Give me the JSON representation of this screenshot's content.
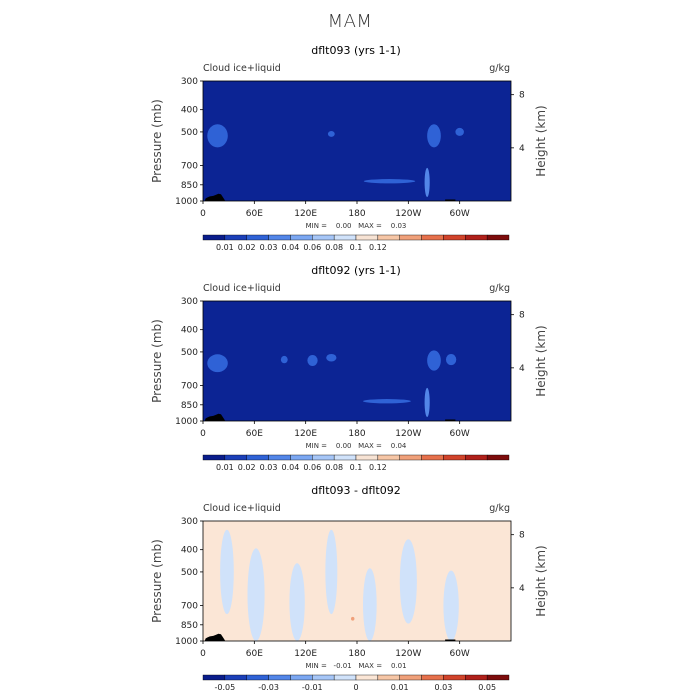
{
  "page": {
    "title": "MAM"
  },
  "chart_data": [
    {
      "type": "heatmap",
      "title": "dflt093 (yrs 1-1)",
      "left_label": "Cloud ice+liquid",
      "units": "g/kg",
      "ylabel": "Pressure (mb)",
      "y2label": "Height (km)",
      "x_ticks": [
        "0",
        "60E",
        "120E",
        "180",
        "120W",
        "60W"
      ],
      "y_ticks": [
        "300",
        "400",
        "500",
        "700",
        "850",
        "1000"
      ],
      "y_tick_values": [
        300,
        400,
        500,
        700,
        850,
        1000
      ],
      "y2_ticks": [
        "8",
        "4"
      ],
      "stats": "MIN =    0.00   MAX =    0.03",
      "colorbar_labels": [
        "0.01",
        "0.02",
        "0.03",
        "0.04",
        "0.06",
        "0.08",
        "0.1",
        "0.12"
      ],
      "colorbar_colors": [
        "#0a1d8c",
        "#1b3fb8",
        "#2f62d6",
        "#5286e8",
        "#7ba7f2",
        "#a6c6f7",
        "#d0e2fa",
        "#f7e3d4",
        "#f6c6a6",
        "#f0a07a",
        "#e6704b",
        "#d1432a",
        "#b0201a",
        "#7d0c0c"
      ],
      "field_color": "#0c2494",
      "features": [
        {
          "x": 17,
          "p": 520,
          "rx": 12,
          "rp": 60,
          "level": 2
        },
        {
          "x": 150,
          "p": 510,
          "rx": 4,
          "rp": 15,
          "level": 2
        },
        {
          "x": 218,
          "p": 820,
          "rx": 30,
          "rp": 18,
          "level": 2
        },
        {
          "x": 270,
          "p": 520,
          "rx": 8,
          "rp": 60,
          "level": 2
        },
        {
          "x": 300,
          "p": 500,
          "rx": 5,
          "rp": 20,
          "level": 2
        },
        {
          "x": 262,
          "p": 830,
          "rx": 3,
          "rp": 120,
          "level": 3
        }
      ]
    },
    {
      "type": "heatmap",
      "title": "dflt092 (yrs 1-1)",
      "left_label": "Cloud ice+liquid",
      "units": "g/kg",
      "ylabel": "Pressure (mb)",
      "y2label": "Height (km)",
      "x_ticks": [
        "0",
        "60E",
        "120E",
        "180",
        "120W",
        "60W"
      ],
      "y_ticks": [
        "300",
        "400",
        "500",
        "700",
        "850",
        "1000"
      ],
      "y_tick_values": [
        300,
        400,
        500,
        700,
        850,
        1000
      ],
      "y2_ticks": [
        "8",
        "4"
      ],
      "stats": "MIN =    0.00   MAX =    0.04",
      "colorbar_labels": [
        "0.01",
        "0.02",
        "0.03",
        "0.04",
        "0.06",
        "0.08",
        "0.1",
        "0.12"
      ],
      "colorbar_colors": [
        "#0a1d8c",
        "#1b3fb8",
        "#2f62d6",
        "#5286e8",
        "#7ba7f2",
        "#a6c6f7",
        "#d0e2fa",
        "#f7e3d4",
        "#f6c6a6",
        "#f0a07a",
        "#e6704b",
        "#d1432a",
        "#b0201a",
        "#7d0c0c"
      ],
      "field_color": "#0c2494",
      "features": [
        {
          "x": 17,
          "p": 560,
          "rx": 12,
          "rp": 50,
          "level": 2
        },
        {
          "x": 95,
          "p": 540,
          "rx": 4,
          "rp": 20,
          "level": 2
        },
        {
          "x": 128,
          "p": 545,
          "rx": 6,
          "rp": 30,
          "level": 2
        },
        {
          "x": 150,
          "p": 530,
          "rx": 6,
          "rp": 20,
          "level": 2
        },
        {
          "x": 215,
          "p": 820,
          "rx": 28,
          "rp": 18,
          "level": 2
        },
        {
          "x": 270,
          "p": 545,
          "rx": 8,
          "rp": 55,
          "level": 2
        },
        {
          "x": 290,
          "p": 540,
          "rx": 6,
          "rp": 30,
          "level": 2
        },
        {
          "x": 262,
          "p": 830,
          "rx": 3,
          "rp": 120,
          "level": 3
        }
      ]
    },
    {
      "type": "heatmap",
      "title": "dflt093 - dflt092",
      "left_label": "Cloud ice+liquid",
      "units": "g/kg",
      "ylabel": "Pressure (mb)",
      "y2label": "Height (km)",
      "x_ticks": [
        "0",
        "60E",
        "120E",
        "180",
        "120W",
        "60W"
      ],
      "y_ticks": [
        "300",
        "400",
        "500",
        "700",
        "850",
        "1000"
      ],
      "y_tick_values": [
        300,
        400,
        500,
        700,
        850,
        1000
      ],
      "y2_ticks": [
        "8",
        "4"
      ],
      "stats": "MIN =   -0.01   MAX =    0.01",
      "colorbar_labels": [
        "-0.05",
        "-0.03",
        "-0.01",
        "0",
        "0.01",
        "0.03",
        "0.05"
      ],
      "colorbar_colors": [
        "#0a1d8c",
        "#1b3fb8",
        "#2f62d6",
        "#5286e8",
        "#7ba7f2",
        "#a6c6f7",
        "#d0e2fa",
        "#fbe6d6",
        "#f6c6a6",
        "#f0a07a",
        "#e6704b",
        "#d1432a",
        "#b0201a",
        "#7d0c0c"
      ],
      "field_color": "#fbe6d6",
      "features": [
        {
          "x": 28,
          "p": 500,
          "rx": 8,
          "rp": 200,
          "level": 6
        },
        {
          "x": 62,
          "p": 650,
          "rx": 10,
          "rp": 300,
          "level": 6
        },
        {
          "x": 110,
          "p": 700,
          "rx": 9,
          "rp": 280,
          "level": 6
        },
        {
          "x": 150,
          "p": 500,
          "rx": 7,
          "rp": 200,
          "level": 6
        },
        {
          "x": 195,
          "p": 700,
          "rx": 8,
          "rp": 250,
          "level": 6
        },
        {
          "x": 240,
          "p": 550,
          "rx": 10,
          "rp": 220,
          "level": 6
        },
        {
          "x": 290,
          "p": 720,
          "rx": 9,
          "rp": 260,
          "level": 6
        },
        {
          "x": 175,
          "p": 800,
          "rx": 2,
          "rp": 15,
          "level": 9
        }
      ]
    }
  ]
}
